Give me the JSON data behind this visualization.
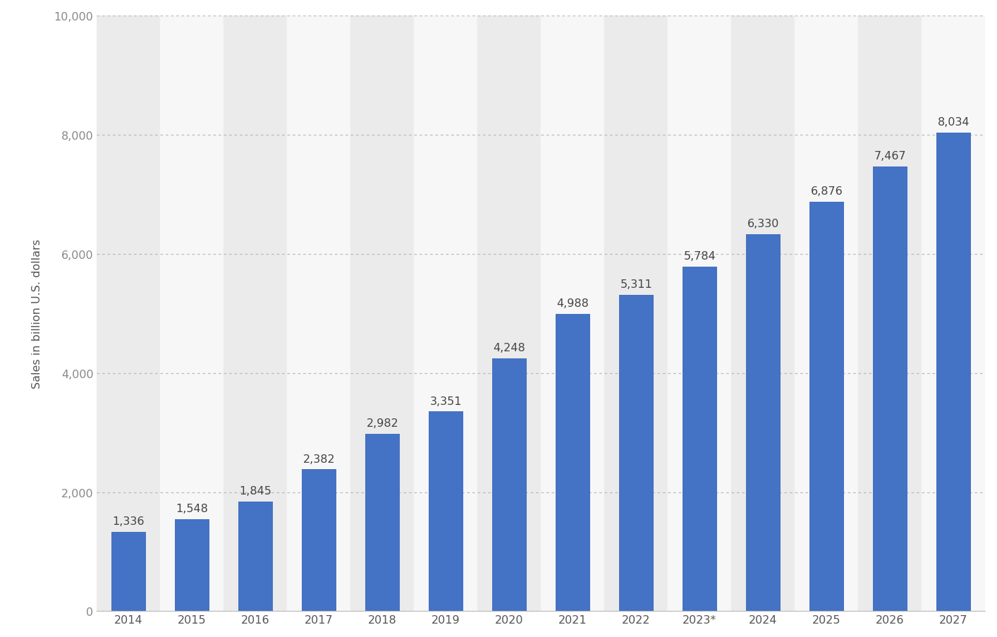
{
  "categories": [
    "2014",
    "2015",
    "2016",
    "2017",
    "2018",
    "2019",
    "2020",
    "2021",
    "2022",
    "2023*",
    "2024",
    "2025",
    "2026",
    "2027"
  ],
  "values": [
    1336,
    1548,
    1845,
    2382,
    2982,
    3351,
    4248,
    4988,
    5311,
    5784,
    6330,
    6876,
    7467,
    8034
  ],
  "bar_color": "#4472c4",
  "background_color": "#ffffff",
  "plot_bg_color": "#ffffff",
  "stripe_even_color": "#ebebeb",
  "stripe_odd_color": "#f7f7f7",
  "grid_color": "#bbbbbb",
  "ylabel": "Sales in billion U.S. dollars",
  "ylim": [
    0,
    10000
  ],
  "yticks": [
    0,
    2000,
    4000,
    6000,
    8000,
    10000
  ],
  "ytick_labels": [
    "0",
    "2,000",
    "4,000",
    "6,000",
    "8,000",
    "10,000"
  ],
  "label_fontsize": 11.5,
  "axis_fontsize": 11.5,
  "tick_fontsize": 11.5,
  "value_label_color": "#444444",
  "bar_width": 0.55
}
